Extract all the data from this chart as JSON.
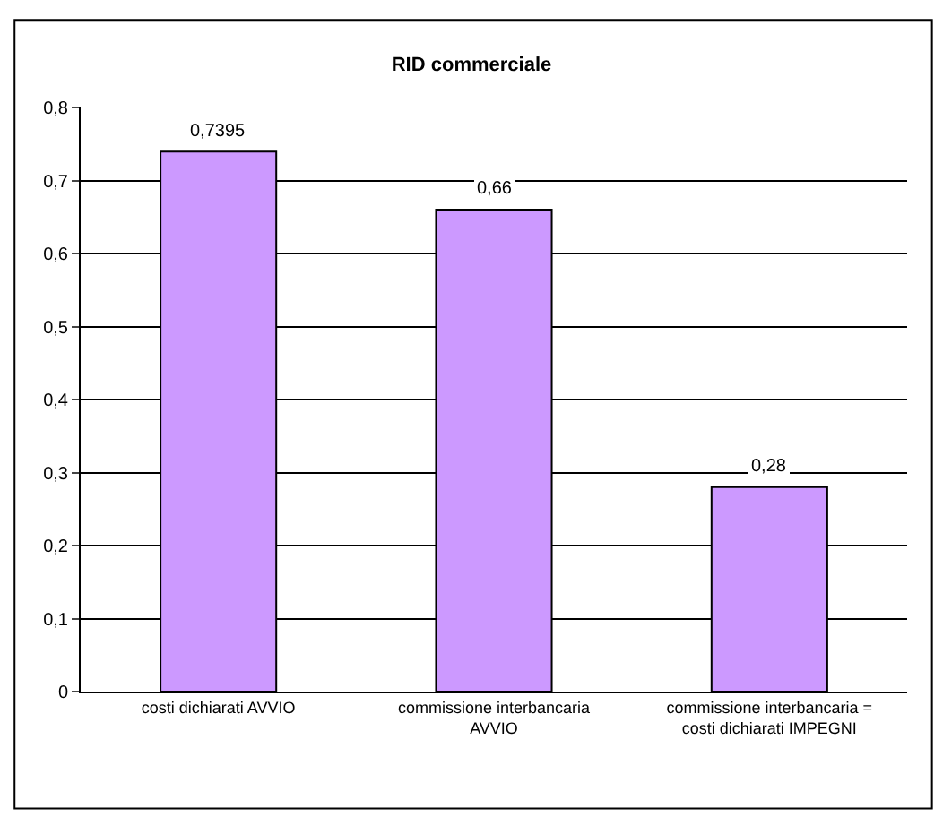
{
  "chart_data": {
    "type": "bar",
    "title": "RID commerciale",
    "categories": [
      "costi dichiarati AVVIO",
      "commissione interbancaria AVVIO",
      "commissione interbancaria = costi dichiarati IMPEGNI"
    ],
    "values": [
      0.7395,
      0.66,
      0.28
    ],
    "value_labels": [
      "0,7395",
      "0,66",
      "0,28"
    ],
    "color": "#cc99ff",
    "ylim": [
      0,
      0.8
    ],
    "yticks": [
      0,
      {
        "value": 0.1,
        "label": "0,1"
      },
      {
        "value": 0.2,
        "label": "0,2"
      },
      {
        "value": 0.3,
        "label": "0,3"
      },
      {
        "value": 0.4,
        "label": "0,4"
      },
      {
        "value": 0.5,
        "label": "0,5"
      },
      {
        "value": 0.6,
        "label": "0,6"
      },
      {
        "value": 0.7,
        "label": "0,7"
      },
      {
        "value": 0.8,
        "label": "0,8"
      }
    ],
    "grid": "y"
  }
}
